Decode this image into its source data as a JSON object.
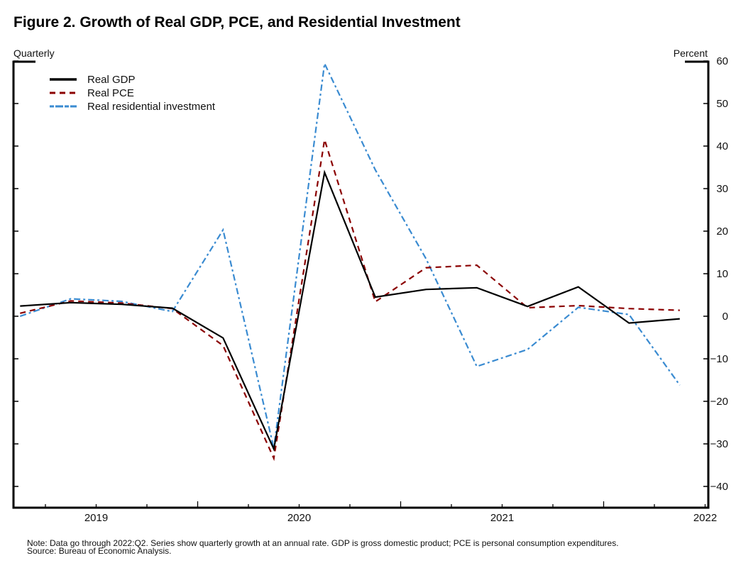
{
  "chart_data": {
    "type": "line",
    "title": "Figure 2. Growth of Real GDP, PCE, and Residential Investment",
    "left_axis_label": "Quarterly",
    "ylabel": "Percent",
    "xlabel": "",
    "ylim": [
      -45,
      60
    ],
    "yticks": [
      60,
      50,
      40,
      30,
      20,
      10,
      0,
      -10,
      -20,
      -30,
      -40
    ],
    "ytick_labels": [
      "60",
      "50",
      "40",
      "30",
      "20",
      "10",
      "0",
      "−10",
      "−20",
      "−30",
      "−40"
    ],
    "x": [
      "2019:Q1",
      "2019:Q2",
      "2019:Q3",
      "2019:Q4",
      "2020:Q1",
      "2020:Q2",
      "2020:Q3",
      "2020:Q4",
      "2021:Q1",
      "2021:Q2",
      "2021:Q3",
      "2021:Q4",
      "2022:Q1",
      "2022:Q2"
    ],
    "year_labels": [
      "2019",
      "2020",
      "2021",
      "2022"
    ],
    "grid": false,
    "legend_position": "top-left",
    "series": [
      {
        "name": "Real GDP",
        "color": "#000000",
        "style": "solid",
        "values": [
          2.4,
          3.2,
          2.8,
          1.9,
          -5.1,
          -31.2,
          33.8,
          4.5,
          6.3,
          6.7,
          2.3,
          6.9,
          -1.6,
          -0.6
        ]
      },
      {
        "name": "Real PCE",
        "color": "#8b0000",
        "style": "dashed",
        "values": [
          0.7,
          3.6,
          3.1,
          1.8,
          -6.9,
          -33.4,
          41.5,
          3.4,
          11.4,
          12.0,
          2.0,
          2.5,
          1.8,
          1.4
        ]
      },
      {
        "name": "Real residential investment",
        "color": "#3a8bd1",
        "style": "dashdot",
        "values": [
          0.0,
          4.1,
          3.5,
          1.1,
          20.3,
          -31.0,
          59.4,
          34.4,
          13.5,
          -11.8,
          -7.8,
          2.1,
          0.4,
          -16.2
        ]
      }
    ]
  },
  "notes": {
    "line1": "Note: Data go through 2022:Q2. Series show quarterly growth at an annual rate. GDP is gross domestic product; PCE is personal consumption expenditures.",
    "line2": "Source: Bureau of Economic Analysis."
  }
}
